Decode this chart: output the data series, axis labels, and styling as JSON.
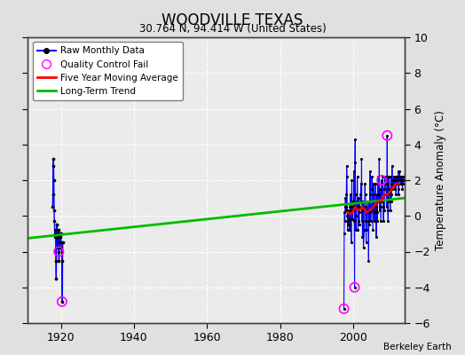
{
  "title": "WOODVILLE TEXAS",
  "subtitle": "30.764 N, 94.414 W (United States)",
  "ylabel": "Temperature Anomaly (°C)",
  "credit": "Berkeley Earth",
  "xlim": [
    1911,
    2014
  ],
  "ylim": [
    -6,
    10
  ],
  "yticks": [
    -6,
    -4,
    -2,
    0,
    2,
    4,
    6,
    8,
    10
  ],
  "xticks": [
    1920,
    1940,
    1960,
    1980,
    2000
  ],
  "bg_color": "#e0e0e0",
  "plot_bg_color": "#ebebeb",
  "grid_color": "#ffffff",
  "raw_color": "#0000ff",
  "trend_color": "#00bb00",
  "moving_avg_color": "#ff0000",
  "qc_color": "#ff00ff",
  "early_data": {
    "years": [
      1917.75,
      1917.83,
      1917.92,
      1918.0,
      1918.08,
      1918.17,
      1918.25,
      1918.33,
      1918.42,
      1918.5,
      1918.58,
      1918.67,
      1918.75,
      1918.83,
      1918.92,
      1919.0,
      1919.08,
      1919.17,
      1919.25,
      1919.33,
      1919.42,
      1919.5,
      1919.58,
      1919.67,
      1919.75,
      1919.83,
      1919.92,
      1920.0,
      1920.08,
      1920.17,
      1920.25,
      1920.33,
      1920.42,
      1920.5
    ],
    "values": [
      0.5,
      1.2,
      2.8,
      3.2,
      2.0,
      0.3,
      -0.3,
      -0.8,
      -1.0,
      -1.2,
      -1.0,
      -2.5,
      -3.5,
      -1.2,
      -0.5,
      -0.5,
      -1.0,
      -1.8,
      -1.2,
      -0.8,
      -2.0,
      -2.5,
      -1.5,
      -1.8,
      -1.0,
      -1.2,
      -1.0,
      -1.0,
      -1.5,
      -1.8,
      -2.0,
      -2.5,
      -4.8,
      -1.5
    ],
    "qc_fail_years": [
      1919.42,
      1920.33
    ],
    "qc_fail_values": [
      -2.0,
      -4.8
    ]
  },
  "modern_data": [
    [
      1997.42,
      -5.2
    ],
    [
      1997.5,
      -1.0
    ],
    [
      1997.58,
      0.2
    ],
    [
      1997.67,
      -0.3
    ],
    [
      1997.75,
      0.5
    ],
    [
      1997.83,
      1.0
    ],
    [
      1997.92,
      0.5
    ],
    [
      1998.0,
      0.3
    ],
    [
      1998.08,
      1.2
    ],
    [
      1998.17,
      2.8
    ],
    [
      1998.25,
      2.2
    ],
    [
      1998.33,
      0.0
    ],
    [
      1998.42,
      -0.8
    ],
    [
      1998.5,
      0.3
    ],
    [
      1998.58,
      -0.5
    ],
    [
      1998.67,
      -0.3
    ],
    [
      1998.75,
      0.2
    ],
    [
      1998.83,
      -0.2
    ],
    [
      1998.92,
      -0.5
    ],
    [
      1999.0,
      -0.8
    ],
    [
      1999.08,
      0.5
    ],
    [
      1999.17,
      1.2
    ],
    [
      1999.25,
      -0.2
    ],
    [
      1999.33,
      0.3
    ],
    [
      1999.42,
      -1.5
    ],
    [
      1999.5,
      0.2
    ],
    [
      1999.58,
      2.0
    ],
    [
      1999.67,
      0.8
    ],
    [
      1999.75,
      -0.2
    ],
    [
      1999.83,
      0.5
    ],
    [
      2000.0,
      0.3
    ],
    [
      2000.08,
      0.8
    ],
    [
      2000.17,
      2.5
    ],
    [
      2000.25,
      -0.3
    ],
    [
      2000.33,
      -4.0
    ],
    [
      2000.42,
      3.0
    ],
    [
      2000.5,
      4.3
    ],
    [
      2000.58,
      1.2
    ],
    [
      2000.67,
      -0.8
    ],
    [
      2000.75,
      0.0
    ],
    [
      2000.83,
      0.5
    ],
    [
      2001.0,
      0.8
    ],
    [
      2001.08,
      2.2
    ],
    [
      2001.17,
      0.5
    ],
    [
      2001.25,
      -0.8
    ],
    [
      2001.33,
      -0.3
    ],
    [
      2001.42,
      1.0
    ],
    [
      2001.5,
      0.3
    ],
    [
      2001.58,
      -0.5
    ],
    [
      2001.67,
      0.2
    ],
    [
      2001.75,
      0.5
    ],
    [
      2002.0,
      1.2
    ],
    [
      2002.08,
      1.8
    ],
    [
      2002.17,
      0.8
    ],
    [
      2002.25,
      3.2
    ],
    [
      2002.33,
      -0.3
    ],
    [
      2002.42,
      0.3
    ],
    [
      2002.5,
      -1.2
    ],
    [
      2002.58,
      0.5
    ],
    [
      2002.67,
      0.8
    ],
    [
      2002.75,
      -1.8
    ],
    [
      2003.0,
      -0.8
    ],
    [
      2003.08,
      0.3
    ],
    [
      2003.17,
      1.8
    ],
    [
      2003.25,
      1.2
    ],
    [
      2003.33,
      0.5
    ],
    [
      2003.42,
      -0.3
    ],
    [
      2003.5,
      -1.5
    ],
    [
      2003.58,
      0.2
    ],
    [
      2003.67,
      -0.8
    ],
    [
      2003.75,
      0.8
    ],
    [
      2004.0,
      0.3
    ],
    [
      2004.08,
      -0.3
    ],
    [
      2004.17,
      -2.5
    ],
    [
      2004.25,
      0.8
    ],
    [
      2004.33,
      0.3
    ],
    [
      2004.42,
      -0.5
    ],
    [
      2004.5,
      1.2
    ],
    [
      2004.58,
      2.5
    ],
    [
      2004.67,
      0.2
    ],
    [
      2004.75,
      -0.3
    ],
    [
      2005.0,
      0.8
    ],
    [
      2005.08,
      2.2
    ],
    [
      2005.17,
      1.5
    ],
    [
      2005.25,
      0.3
    ],
    [
      2005.33,
      -0.8
    ],
    [
      2005.42,
      0.5
    ],
    [
      2005.5,
      1.8
    ],
    [
      2005.58,
      1.2
    ],
    [
      2005.67,
      0.2
    ],
    [
      2005.75,
      -0.3
    ],
    [
      2006.0,
      0.8
    ],
    [
      2006.08,
      1.8
    ],
    [
      2006.17,
      0.3
    ],
    [
      2006.25,
      -1.2
    ],
    [
      2006.33,
      0.5
    ],
    [
      2006.42,
      1.2
    ],
    [
      2006.5,
      0.2
    ],
    [
      2006.58,
      -0.3
    ],
    [
      2006.67,
      2.2
    ],
    [
      2006.75,
      0.8
    ],
    [
      2007.0,
      1.2
    ],
    [
      2007.08,
      3.2
    ],
    [
      2007.17,
      0.8
    ],
    [
      2007.25,
      0.3
    ],
    [
      2007.33,
      1.5
    ],
    [
      2007.42,
      0.5
    ],
    [
      2007.5,
      -0.3
    ],
    [
      2007.58,
      0.8
    ],
    [
      2007.67,
      1.8
    ],
    [
      2007.75,
      2.0
    ],
    [
      2008.0,
      0.8
    ],
    [
      2008.08,
      2.2
    ],
    [
      2008.17,
      0.5
    ],
    [
      2008.25,
      -0.3
    ],
    [
      2008.33,
      1.2
    ],
    [
      2008.42,
      0.3
    ],
    [
      2008.5,
      1.5
    ],
    [
      2008.58,
      2.0
    ],
    [
      2008.67,
      2.2
    ],
    [
      2008.75,
      1.8
    ],
    [
      2009.0,
      1.2
    ],
    [
      2009.08,
      0.5
    ],
    [
      2009.17,
      1.8
    ],
    [
      2009.25,
      4.5
    ],
    [
      2009.33,
      1.0
    ],
    [
      2009.42,
      0.3
    ],
    [
      2009.5,
      -0.3
    ],
    [
      2009.58,
      0.8
    ],
    [
      2009.67,
      2.2
    ],
    [
      2009.75,
      1.5
    ],
    [
      2010.0,
      1.2
    ],
    [
      2010.08,
      0.3
    ],
    [
      2010.17,
      1.5
    ],
    [
      2010.25,
      2.2
    ],
    [
      2010.33,
      0.8
    ],
    [
      2010.42,
      1.2
    ],
    [
      2010.5,
      1.8
    ],
    [
      2010.58,
      2.8
    ],
    [
      2010.67,
      2.0
    ],
    [
      2010.75,
      1.5
    ],
    [
      2011.0,
      1.8
    ],
    [
      2011.08,
      2.2
    ],
    [
      2011.17,
      2.0
    ],
    [
      2011.25,
      1.8
    ],
    [
      2011.33,
      2.2
    ],
    [
      2011.42,
      1.5
    ],
    [
      2011.5,
      2.0
    ],
    [
      2011.58,
      2.2
    ],
    [
      2011.67,
      1.2
    ],
    [
      2011.75,
      1.8
    ],
    [
      2012.0,
      2.2
    ],
    [
      2012.08,
      1.8
    ],
    [
      2012.17,
      2.0
    ],
    [
      2012.25,
      2.5
    ],
    [
      2012.33,
      1.2
    ],
    [
      2012.42,
      1.5
    ],
    [
      2012.5,
      1.8
    ],
    [
      2012.58,
      2.2
    ],
    [
      2012.67,
      2.5
    ],
    [
      2012.75,
      2.0
    ],
    [
      2013.0,
      2.2
    ],
    [
      2013.08,
      1.8
    ],
    [
      2013.17,
      2.2
    ],
    [
      2013.25,
      1.8
    ],
    [
      2013.33,
      2.0
    ],
    [
      2013.42,
      1.5
    ],
    [
      2013.5,
      2.2
    ],
    [
      2013.58,
      1.8
    ],
    [
      2013.67,
      2.0
    ],
    [
      2013.75,
      2.2
    ]
  ],
  "modern_qc_fail": [
    [
      2000.33,
      -4.0
    ],
    [
      1997.42,
      -5.2
    ],
    [
      2007.75,
      2.0
    ],
    [
      2009.25,
      4.5
    ]
  ],
  "trend_line": {
    "x": [
      1911,
      2014
    ],
    "y": [
      -1.25,
      1.0
    ]
  },
  "moving_avg": {
    "x": [
      1998.5,
      1999.5,
      2000.5,
      2001.5,
      2002.5,
      2003.5,
      2004.5,
      2005.5,
      2006.5,
      2007.5,
      2008.5,
      2009.5,
      2010.5,
      2011.5,
      2012.5
    ],
    "y": [
      0.2,
      0.1,
      0.5,
      0.3,
      0.5,
      0.2,
      0.3,
      0.5,
      0.8,
      0.8,
      1.2,
      1.2,
      1.5,
      1.8,
      1.8
    ]
  }
}
